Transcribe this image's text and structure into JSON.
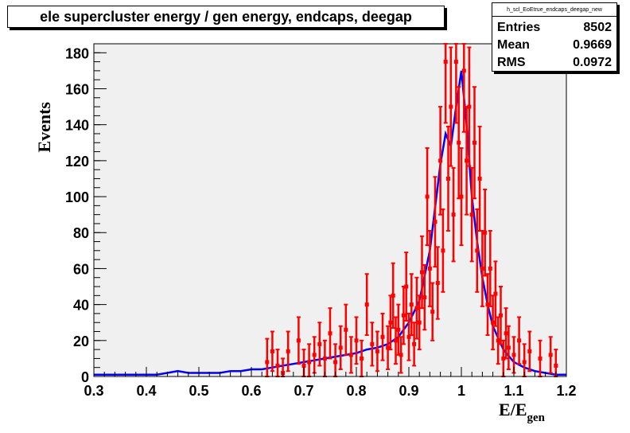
{
  "chart_data": {
    "type": "histogram",
    "title": "ele supercluster energy / gen energy, endcaps, deegap",
    "xlabel": "E/E",
    "xlabel_subscript": "gen",
    "ylabel": "Events",
    "xlim": [
      0.3,
      1.2
    ],
    "ylim": [
      0,
      185
    ],
    "x_ticks": [
      "0.3",
      "0.4",
      "0.5",
      "0.6",
      "0.7",
      "0.8",
      "0.9",
      "1",
      "1.1",
      "1.2"
    ],
    "y_ticks": [
      "0",
      "20",
      "40",
      "60",
      "80",
      "100",
      "120",
      "140",
      "160",
      "180"
    ],
    "stats": {
      "name": "h_scl_EoEtrue_endcaps_deegap_new",
      "rows": [
        {
          "label": "Entries",
          "value": "8502"
        },
        {
          "label": "Mean",
          "value": "0.9669"
        },
        {
          "label": "RMS",
          "value": "0.0972"
        }
      ]
    },
    "series": [
      {
        "color": "#0000ff",
        "style": "line",
        "x": [
          0.3,
          0.32,
          0.34,
          0.36,
          0.38,
          0.4,
          0.42,
          0.44,
          0.46,
          0.48,
          0.5,
          0.52,
          0.54,
          0.56,
          0.58,
          0.6,
          0.62,
          0.64,
          0.66,
          0.68,
          0.7,
          0.72,
          0.74,
          0.76,
          0.78,
          0.8,
          0.82,
          0.84,
          0.86,
          0.88,
          0.9,
          0.92,
          0.94,
          0.96,
          0.97,
          0.98,
          0.99,
          1.0,
          1.01,
          1.02,
          1.03,
          1.04,
          1.05,
          1.06,
          1.08,
          1.1,
          1.12,
          1.14,
          1.16,
          1.18,
          1.2
        ],
        "y": [
          1,
          1,
          1,
          1,
          1,
          1,
          1,
          2,
          3,
          2,
          2,
          2,
          2,
          3,
          3,
          4,
          4,
          5,
          6,
          7,
          8,
          9,
          10,
          11,
          12,
          13,
          15,
          16,
          18,
          22,
          30,
          42,
          70,
          118,
          135,
          128,
          150,
          170,
          140,
          100,
          75,
          55,
          40,
          28,
          15,
          8,
          5,
          3,
          2,
          1,
          1
        ]
      },
      {
        "color": "#ff0000",
        "style": "markers-errors",
        "points": [
          [
            0.63,
            8,
            13
          ],
          [
            0.64,
            14,
            11
          ],
          [
            0.65,
            6,
            9
          ],
          [
            0.66,
            2,
            8
          ],
          [
            0.67,
            14,
            11
          ],
          [
            0.69,
            20,
            13
          ],
          [
            0.7,
            6,
            9
          ],
          [
            0.71,
            8,
            10
          ],
          [
            0.72,
            12,
            10
          ],
          [
            0.73,
            18,
            12
          ],
          [
            0.74,
            10,
            10
          ],
          [
            0.75,
            24,
            14
          ],
          [
            0.76,
            8,
            10
          ],
          [
            0.77,
            16,
            12
          ],
          [
            0.78,
            26,
            14
          ],
          [
            0.79,
            12,
            10
          ],
          [
            0.8,
            20,
            13
          ],
          [
            0.81,
            10,
            10
          ],
          [
            0.82,
            40,
            17
          ],
          [
            0.83,
            18,
            12
          ],
          [
            0.84,
            14,
            11
          ],
          [
            0.85,
            22,
            13
          ],
          [
            0.86,
            16,
            12
          ],
          [
            0.865,
            30,
            15
          ],
          [
            0.87,
            45,
            18
          ],
          [
            0.875,
            20,
            13
          ],
          [
            0.88,
            26,
            14
          ],
          [
            0.885,
            12,
            10
          ],
          [
            0.89,
            34,
            16
          ],
          [
            0.895,
            50,
            19
          ],
          [
            0.9,
            22,
            13
          ],
          [
            0.905,
            40,
            17
          ],
          [
            0.91,
            18,
            12
          ],
          [
            0.915,
            38,
            17
          ],
          [
            0.92,
            30,
            15
          ],
          [
            0.925,
            58,
            20
          ],
          [
            0.93,
            44,
            18
          ],
          [
            0.935,
            100,
            27
          ],
          [
            0.94,
            60,
            21
          ],
          [
            0.945,
            36,
            16
          ],
          [
            0.95,
            86,
            25
          ],
          [
            0.955,
            52,
            20
          ],
          [
            0.96,
            120,
            30
          ],
          [
            0.965,
            70,
            23
          ],
          [
            0.97,
            175,
            34
          ],
          [
            0.975,
            110,
            29
          ],
          [
            0.98,
            150,
            33
          ],
          [
            0.985,
            90,
            26
          ],
          [
            0.99,
            175,
            34
          ],
          [
            0.995,
            130,
            31
          ],
          [
            1.0,
            100,
            27
          ],
          [
            1.005,
            170,
            34
          ],
          [
            1.01,
            120,
            30
          ],
          [
            1.015,
            150,
            33
          ],
          [
            1.02,
            90,
            26
          ],
          [
            1.025,
            130,
            31
          ],
          [
            1.03,
            70,
            23
          ],
          [
            1.035,
            110,
            29
          ],
          [
            1.04,
            60,
            21
          ],
          [
            1.045,
            80,
            24
          ],
          [
            1.05,
            40,
            17
          ],
          [
            1.055,
            60,
            21
          ],
          [
            1.06,
            30,
            15
          ],
          [
            1.065,
            46,
            18
          ],
          [
            1.07,
            20,
            13
          ],
          [
            1.075,
            34,
            16
          ],
          [
            1.08,
            10,
            10
          ],
          [
            1.085,
            24,
            14
          ],
          [
            1.09,
            16,
            12
          ],
          [
            1.1,
            12,
            10
          ],
          [
            1.11,
            20,
            13
          ],
          [
            1.12,
            8,
            10
          ],
          [
            1.13,
            14,
            11
          ],
          [
            1.15,
            10,
            10
          ],
          [
            1.17,
            12,
            10
          ],
          [
            1.18,
            6,
            9
          ]
        ]
      }
    ]
  }
}
